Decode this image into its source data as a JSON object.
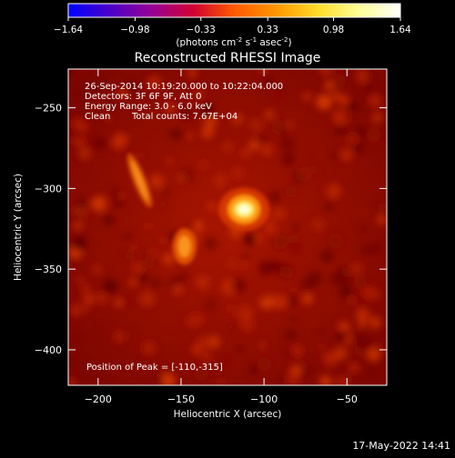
{
  "chart_data": {
    "type": "heatmap",
    "title": "Reconstructed RHESSI Image",
    "colorbar": {
      "ticks": [
        "-1.64",
        "-0.98",
        "-0.33",
        "0.33",
        "0.98",
        "1.64"
      ],
      "range": [
        -1.64,
        1.64
      ],
      "unit_main": "(photons cm",
      "unit_exp1": "-2",
      "unit_mid": " s",
      "unit_exp2": "-1",
      "unit_tail": " asec",
      "unit_exp3": "-2",
      "unit_close": ")",
      "colormap": [
        "#0000ff",
        "#4b00c8",
        "#960096",
        "#d20032",
        "#ff5a00",
        "#ff9600",
        "#ffdc28",
        "#ffff96",
        "#ffffff"
      ]
    },
    "x_axis": {
      "label": "Heliocentric X (arcsec)",
      "range": [
        -218,
        -26
      ],
      "ticks": [
        -200,
        -150,
        -100,
        -50
      ],
      "tick_labels": [
        "−200",
        "−150",
        "−100",
        "−50"
      ]
    },
    "y_axis": {
      "label": "Heliocentric Y (arcsec)",
      "range": [
        -422,
        -226
      ],
      "ticks": [
        -250,
        -300,
        -350,
        -400
      ],
      "tick_labels": [
        "−250",
        "−300",
        "−350",
        "−400"
      ]
    },
    "annotations": {
      "time": "26-Sep-2014 10:19:20.000 to 10:22:04.000",
      "detectors": "Detectors: 3F 6F 9F, Att 0",
      "energy": "Energy Range: 3.0 - 6.0 keV",
      "method": "Clean",
      "counts": "Total counts: 7.67E+04",
      "peak": "Position of Peak = [-110,-315]"
    },
    "sources": [
      {
        "x": -112,
        "y": -313,
        "peak": 1.64
      },
      {
        "x": -148,
        "y": -336,
        "peak": 0.75
      },
      {
        "x": -175,
        "y": -295,
        "peak": 0.65
      }
    ],
    "footer_date": "17-May-2022 14:41"
  }
}
